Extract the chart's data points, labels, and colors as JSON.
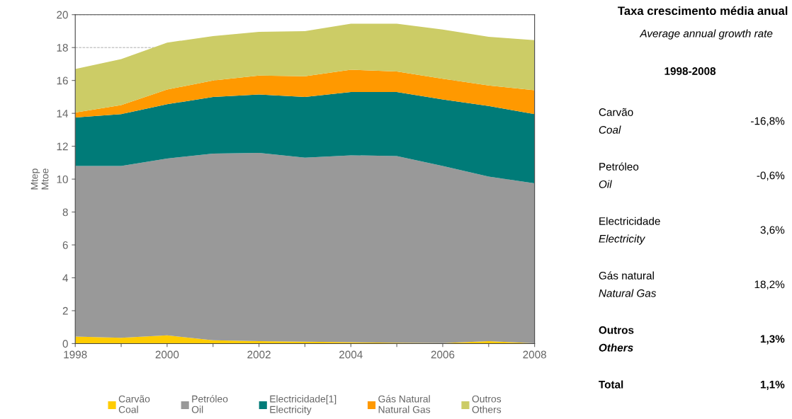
{
  "chart_data": [
    {
      "type": "area",
      "stacked": true,
      "ylabel": "Mtep\nMtoe",
      "x": [
        1998,
        1999,
        2000,
        2001,
        2002,
        2003,
        2004,
        2005,
        2006,
        2007,
        2008
      ],
      "xlim": [
        1998,
        2008
      ],
      "xticks": [
        1998,
        {
          "value": 1999,
          "label": null
        },
        2000,
        {
          "value": 2001,
          "label": null
        },
        2002,
        {
          "value": 2003,
          "label": null
        },
        2004,
        {
          "value": 2005,
          "label": null
        },
        2006,
        {
          "value": 2007,
          "label": null
        },
        2008
      ],
      "ylim": [
        0,
        20
      ],
      "yticks": [
        0,
        2,
        4,
        6,
        8,
        10,
        12,
        14,
        16,
        18,
        20
      ],
      "grid": "y",
      "legend": "bottom",
      "series": [
        {
          "name": "Carvão\nCoal",
          "color": "#ffcc00",
          "values": [
            0.43,
            0.35,
            0.5,
            0.2,
            0.15,
            0.12,
            0.08,
            0.05,
            0.03,
            0.15,
            0.02
          ]
        },
        {
          "name": "Petróleo\nOil",
          "color": "#999999",
          "values": [
            10.37,
            10.45,
            10.75,
            11.35,
            11.45,
            11.18,
            11.37,
            11.35,
            10.77,
            10.0,
            9.73
          ]
        },
        {
          "name": "Electricidade[1]\nElectricity",
          "color": "#007b78",
          "values": [
            2.95,
            3.15,
            3.3,
            3.45,
            3.55,
            3.7,
            3.85,
            3.9,
            4.05,
            4.3,
            4.2
          ]
        },
        {
          "name": "Gás Natural\nNatural Gas",
          "color": "#ff9900",
          "values": [
            0.3,
            0.55,
            0.9,
            1.0,
            1.15,
            1.25,
            1.35,
            1.25,
            1.25,
            1.25,
            1.45
          ]
        },
        {
          "name": "Outros\nOthers",
          "color": "#cccc66",
          "values": [
            2.65,
            2.8,
            2.85,
            2.7,
            2.65,
            2.75,
            2.8,
            2.9,
            3.0,
            2.95,
            3.05
          ]
        }
      ]
    },
    {
      "type": "other",
      "title": "Taxa crescimento média anual",
      "subtitle": "Average annual growth rate",
      "annotations": [
        "1998-2008"
      ],
      "categories": [
        "Carvão\nCoal",
        "Petróleo\nOil",
        "Electricidade\nElectricity",
        "Gás natural\nNatural Gas",
        "Outros\nOthers",
        "Total"
      ],
      "value_labels": [
        "-16,8%",
        "-0,6%",
        "3,6%",
        "18,2%",
        "1,3%",
        "1,1%"
      ]
    }
  ]
}
